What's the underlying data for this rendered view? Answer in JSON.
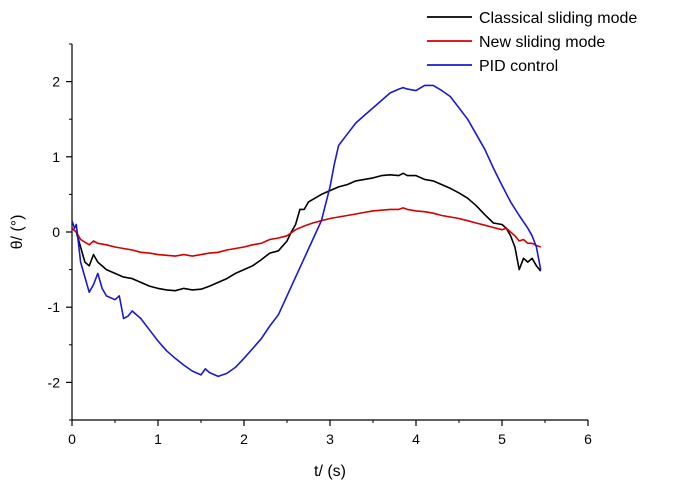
{
  "chart_data": {
    "type": "line",
    "xlabel": "t/ (s)",
    "ylabel": "θ/ (°)",
    "xlim": [
      0,
      6
    ],
    "ylim": [
      -2.5,
      2.5
    ],
    "x_ticks": [
      0,
      1,
      2,
      3,
      4,
      5,
      6
    ],
    "x_tick_labels": [
      "0",
      "1",
      "2",
      "3",
      "4",
      "5",
      "6"
    ],
    "y_ticks": [
      -2,
      -1,
      0,
      1,
      2
    ],
    "y_tick_labels": [
      "-2",
      "-1",
      "0",
      "1",
      "2"
    ],
    "grid": false,
    "legend_position": "top-right, outside plot",
    "series": [
      {
        "name": "Classical sliding mode",
        "color": "#000000",
        "points": [
          [
            0,
            0.05
          ],
          [
            0.05,
            0
          ],
          [
            0.1,
            -0.2
          ],
          [
            0.15,
            -0.4
          ],
          [
            0.2,
            -0.45
          ],
          [
            0.25,
            -0.3
          ],
          [
            0.3,
            -0.4
          ],
          [
            0.4,
            -0.5
          ],
          [
            0.5,
            -0.55
          ],
          [
            0.6,
            -0.6
          ],
          [
            0.7,
            -0.62
          ],
          [
            0.8,
            -0.67
          ],
          [
            0.9,
            -0.72
          ],
          [
            1,
            -0.75
          ],
          [
            1.1,
            -0.77
          ],
          [
            1.2,
            -0.78
          ],
          [
            1.3,
            -0.75
          ],
          [
            1.4,
            -0.77
          ],
          [
            1.5,
            -0.76
          ],
          [
            1.6,
            -0.72
          ],
          [
            1.7,
            -0.67
          ],
          [
            1.8,
            -0.62
          ],
          [
            1.9,
            -0.55
          ],
          [
            2.0,
            -0.5
          ],
          [
            2.1,
            -0.45
          ],
          [
            2.2,
            -0.37
          ],
          [
            2.3,
            -0.28
          ],
          [
            2.4,
            -0.25
          ],
          [
            2.5,
            -0.12
          ],
          [
            2.55,
            0.0
          ],
          [
            2.6,
            0.1
          ],
          [
            2.65,
            0.3
          ],
          [
            2.7,
            0.3
          ],
          [
            2.75,
            0.4
          ],
          [
            2.9,
            0.5
          ],
          [
            3.0,
            0.55
          ],
          [
            3.1,
            0.6
          ],
          [
            3.2,
            0.63
          ],
          [
            3.3,
            0.68
          ],
          [
            3.4,
            0.7
          ],
          [
            3.5,
            0.72
          ],
          [
            3.6,
            0.75
          ],
          [
            3.7,
            0.76
          ],
          [
            3.8,
            0.75
          ],
          [
            3.85,
            0.78
          ],
          [
            3.9,
            0.75
          ],
          [
            4.0,
            0.75
          ],
          [
            4.1,
            0.7
          ],
          [
            4.2,
            0.68
          ],
          [
            4.3,
            0.63
          ],
          [
            4.4,
            0.58
          ],
          [
            4.5,
            0.52
          ],
          [
            4.6,
            0.45
          ],
          [
            4.7,
            0.35
          ],
          [
            4.8,
            0.23
          ],
          [
            4.9,
            0.12
          ],
          [
            5.0,
            0.1
          ],
          [
            5.05,
            0.05
          ],
          [
            5.1,
            -0.05
          ],
          [
            5.15,
            -0.2
          ],
          [
            5.2,
            -0.5
          ],
          [
            5.25,
            -0.35
          ],
          [
            5.3,
            -0.4
          ],
          [
            5.35,
            -0.35
          ],
          [
            5.4,
            -0.45
          ],
          [
            5.45,
            -0.52
          ]
        ]
      },
      {
        "name": "New sliding mode",
        "color": "#d40000",
        "points": [
          [
            0,
            0.05
          ],
          [
            0.05,
            0
          ],
          [
            0.1,
            -0.1
          ],
          [
            0.2,
            -0.17
          ],
          [
            0.25,
            -0.12
          ],
          [
            0.3,
            -0.15
          ],
          [
            0.4,
            -0.17
          ],
          [
            0.5,
            -0.2
          ],
          [
            0.6,
            -0.22
          ],
          [
            0.7,
            -0.24
          ],
          [
            0.8,
            -0.27
          ],
          [
            0.9,
            -0.28
          ],
          [
            1.0,
            -0.3
          ],
          [
            1.1,
            -0.31
          ],
          [
            1.2,
            -0.32
          ],
          [
            1.3,
            -0.3
          ],
          [
            1.4,
            -0.32
          ],
          [
            1.5,
            -0.3
          ],
          [
            1.6,
            -0.28
          ],
          [
            1.7,
            -0.27
          ],
          [
            1.8,
            -0.24
          ],
          [
            1.9,
            -0.22
          ],
          [
            2.0,
            -0.2
          ],
          [
            2.1,
            -0.17
          ],
          [
            2.2,
            -0.15
          ],
          [
            2.3,
            -0.1
          ],
          [
            2.4,
            -0.08
          ],
          [
            2.5,
            -0.05
          ],
          [
            2.6,
            0.03
          ],
          [
            2.7,
            0.08
          ],
          [
            2.8,
            0.12
          ],
          [
            2.9,
            0.15
          ],
          [
            3.0,
            0.18
          ],
          [
            3.1,
            0.2
          ],
          [
            3.2,
            0.22
          ],
          [
            3.3,
            0.24
          ],
          [
            3.4,
            0.26
          ],
          [
            3.5,
            0.28
          ],
          [
            3.6,
            0.29
          ],
          [
            3.7,
            0.3
          ],
          [
            3.8,
            0.3
          ],
          [
            3.85,
            0.32
          ],
          [
            3.9,
            0.3
          ],
          [
            4.0,
            0.28
          ],
          [
            4.1,
            0.27
          ],
          [
            4.2,
            0.25
          ],
          [
            4.3,
            0.22
          ],
          [
            4.4,
            0.2
          ],
          [
            4.5,
            0.18
          ],
          [
            4.6,
            0.15
          ],
          [
            4.7,
            0.12
          ],
          [
            4.8,
            0.09
          ],
          [
            4.9,
            0.06
          ],
          [
            5.0,
            0.03
          ],
          [
            5.05,
            0.05
          ],
          [
            5.1,
            0.0
          ],
          [
            5.15,
            -0.05
          ],
          [
            5.2,
            -0.12
          ],
          [
            5.25,
            -0.1
          ],
          [
            5.3,
            -0.15
          ],
          [
            5.35,
            -0.15
          ],
          [
            5.4,
            -0.18
          ],
          [
            5.45,
            -0.2
          ]
        ]
      },
      {
        "name": "PID control",
        "color": "#1a1acc",
        "points": [
          [
            0,
            0.15
          ],
          [
            0.03,
            0.05
          ],
          [
            0.05,
            0.1
          ],
          [
            0.1,
            -0.4
          ],
          [
            0.15,
            -0.6
          ],
          [
            0.2,
            -0.8
          ],
          [
            0.25,
            -0.7
          ],
          [
            0.3,
            -0.55
          ],
          [
            0.35,
            -0.75
          ],
          [
            0.4,
            -0.85
          ],
          [
            0.5,
            -0.9
          ],
          [
            0.55,
            -0.85
          ],
          [
            0.6,
            -1.15
          ],
          [
            0.65,
            -1.12
          ],
          [
            0.7,
            -1.05
          ],
          [
            0.8,
            -1.15
          ],
          [
            0.9,
            -1.3
          ],
          [
            1.0,
            -1.45
          ],
          [
            1.1,
            -1.58
          ],
          [
            1.2,
            -1.68
          ],
          [
            1.3,
            -1.77
          ],
          [
            1.4,
            -1.85
          ],
          [
            1.5,
            -1.9
          ],
          [
            1.55,
            -1.82
          ],
          [
            1.6,
            -1.87
          ],
          [
            1.7,
            -1.92
          ],
          [
            1.8,
            -1.88
          ],
          [
            1.9,
            -1.8
          ],
          [
            2.0,
            -1.68
          ],
          [
            2.1,
            -1.55
          ],
          [
            2.2,
            -1.42
          ],
          [
            2.3,
            -1.25
          ],
          [
            2.4,
            -1.1
          ],
          [
            2.5,
            -0.85
          ],
          [
            2.6,
            -0.6
          ],
          [
            2.7,
            -0.35
          ],
          [
            2.8,
            -0.1
          ],
          [
            2.9,
            0.15
          ],
          [
            3.0,
            0.6
          ],
          [
            3.05,
            0.9
          ],
          [
            3.1,
            1.15
          ],
          [
            3.2,
            1.3
          ],
          [
            3.3,
            1.45
          ],
          [
            3.4,
            1.55
          ],
          [
            3.5,
            1.65
          ],
          [
            3.6,
            1.75
          ],
          [
            3.7,
            1.85
          ],
          [
            3.8,
            1.9
          ],
          [
            3.85,
            1.92
          ],
          [
            3.9,
            1.9
          ],
          [
            4.0,
            1.88
          ],
          [
            4.1,
            1.95
          ],
          [
            4.2,
            1.95
          ],
          [
            4.3,
            1.88
          ],
          [
            4.4,
            1.8
          ],
          [
            4.5,
            1.65
          ],
          [
            4.6,
            1.5
          ],
          [
            4.7,
            1.3
          ],
          [
            4.8,
            1.1
          ],
          [
            4.9,
            0.85
          ],
          [
            5.0,
            0.62
          ],
          [
            5.1,
            0.4
          ],
          [
            5.2,
            0.22
          ],
          [
            5.3,
            0.05
          ],
          [
            5.35,
            -0.05
          ],
          [
            5.4,
            -0.2
          ],
          [
            5.45,
            -0.5
          ]
        ]
      }
    ]
  }
}
